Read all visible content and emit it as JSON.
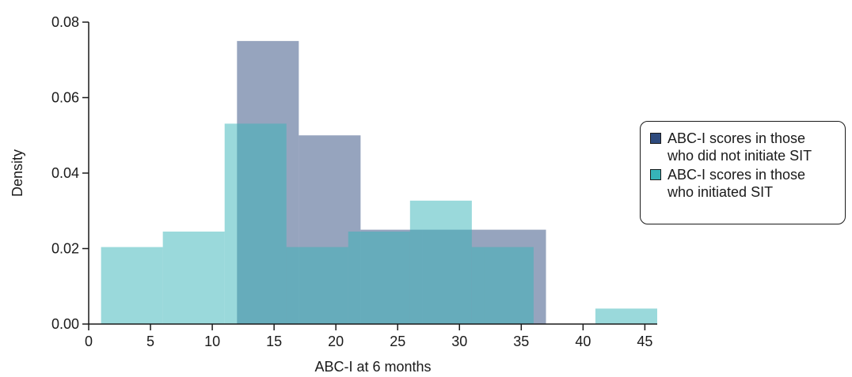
{
  "chart_data": {
    "type": "bar",
    "subtype": "overlaid-histogram",
    "title": "",
    "xlabel": "ABC-I at 6 months",
    "ylabel": "Density",
    "xlim": [
      0,
      46
    ],
    "ylim": [
      0,
      0.08
    ],
    "x_ticks": [
      0,
      5,
      10,
      15,
      20,
      25,
      30,
      35,
      40,
      45
    ],
    "x_tick_labels": [
      "0",
      "5",
      "10",
      "15",
      "20",
      "25",
      "30",
      "35",
      "40",
      "45"
    ],
    "y_ticks": [
      0,
      0.02,
      0.04,
      0.06,
      0.08
    ],
    "y_tick_labels": [
      "0.00",
      "0.02",
      "0.04",
      "0.06",
      "0.08"
    ],
    "grid": false,
    "legend_position": "right",
    "series": [
      {
        "name_lines": [
          "ABC-I scores in those",
          "who did not initiate SIT"
        ],
        "color": "#2e4a7d",
        "opacity": 0.5,
        "bins": [
          {
            "x0": 12,
            "x1": 17,
            "density": 0.075
          },
          {
            "x0": 17,
            "x1": 22,
            "density": 0.05
          },
          {
            "x0": 22,
            "x1": 27,
            "density": 0.025
          },
          {
            "x0": 27,
            "x1": 32,
            "density": 0.025
          },
          {
            "x0": 32,
            "x1": 37,
            "density": 0.025
          }
        ]
      },
      {
        "name_lines": [
          "ABC-I scores in those",
          "who initiated SIT"
        ],
        "color": "#36b3b8",
        "opacity": 0.5,
        "bins": [
          {
            "x0": 1,
            "x1": 6,
            "density": 0.0204
          },
          {
            "x0": 6,
            "x1": 11,
            "density": 0.0245
          },
          {
            "x0": 11,
            "x1": 16,
            "density": 0.0531
          },
          {
            "x0": 16,
            "x1": 21,
            "density": 0.0204
          },
          {
            "x0": 21,
            "x1": 26,
            "density": 0.0245
          },
          {
            "x0": 26,
            "x1": 31,
            "density": 0.0327
          },
          {
            "x0": 31,
            "x1": 36,
            "density": 0.0204
          },
          {
            "x0": 36,
            "x1": 41,
            "density": 0
          },
          {
            "x0": 41,
            "x1": 46,
            "density": 0.0041
          }
        ]
      }
    ]
  },
  "legend": {
    "items": [
      {
        "line1": "ABC-I scores in those",
        "line2": "who did not initiate SIT",
        "swatch_color": "#2e4a7d"
      },
      {
        "line1": "ABC-I scores in those",
        "line2": "who initiated SIT",
        "swatch_color": "#36b3b8"
      }
    ]
  }
}
